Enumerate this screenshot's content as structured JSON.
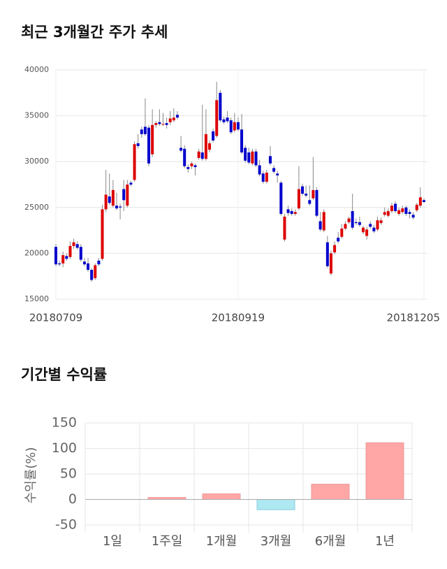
{
  "chart_data": [
    {
      "type": "candlestick",
      "title": "최근 3개월간 주가 추세",
      "categories": [
        "20180709",
        null,
        null,
        null,
        null,
        null,
        null,
        null,
        null,
        null,
        null,
        null,
        null,
        null,
        null,
        null,
        null,
        null,
        null,
        null,
        null,
        null,
        null,
        null,
        null,
        null,
        null,
        null,
        null,
        null,
        null,
        null,
        null,
        null,
        null,
        null,
        null,
        null,
        null,
        null,
        null,
        null,
        null,
        null,
        null,
        null,
        null,
        null,
        null,
        null,
        null,
        "20180919",
        null,
        null,
        null,
        null,
        null,
        null,
        null,
        null,
        null,
        null,
        null,
        null,
        null,
        null,
        null,
        null,
        null,
        null,
        null,
        null,
        null,
        null,
        null,
        null,
        null,
        null,
        null,
        null,
        null,
        null,
        null,
        null,
        null,
        null,
        null,
        null,
        null,
        null,
        null,
        null,
        null,
        null,
        null,
        null,
        null,
        null,
        null,
        null,
        null,
        null,
        null,
        "20181205"
      ],
      "open": [
        20700,
        18900,
        18900,
        19700,
        19600,
        20800,
        21000,
        20700,
        19100,
        18900,
        18200,
        17300,
        19200,
        19400,
        24800,
        26200,
        25200,
        25200,
        25100,
        27000,
        25200,
        27700,
        28000,
        32000,
        33500,
        33800,
        33700,
        30800,
        34000,
        34300,
        34100,
        34200,
        34300,
        34500,
        35100,
        31500,
        31400,
        29400,
        29500,
        29600,
        30400,
        31000,
        30300,
        31300,
        33300,
        32800,
        37500,
        34600,
        34800,
        34500,
        33400,
        34300,
        33500,
        31500,
        31000,
        29800,
        31100,
        29600,
        28700,
        27800,
        30600,
        29300,
        28700,
        27700,
        21500,
        24800,
        24600,
        24300,
        24900,
        27300,
        26500,
        25800,
        26000,
        26900,
        23500,
        22500,
        21200,
        17800,
        20100,
        21700,
        21800,
        22700,
        23400,
        24600,
        23400,
        23400,
        22300,
        21900,
        23200,
        22800,
        22600,
        23300,
        24200,
        24100,
        24600,
        25400,
        24300,
        24500,
        25000,
        24500,
        24200,
        24700,
        25200,
        25800
      ],
      "high": [
        21000,
        19200,
        20200,
        20000,
        21300,
        21600,
        21300,
        21000,
        19500,
        19500,
        18400,
        18900,
        19500,
        25300,
        29100,
        28700,
        28000,
        26600,
        25400,
        28000,
        28000,
        27900,
        32200,
        33000,
        33800,
        36900,
        34000,
        35700,
        34400,
        35700,
        35300,
        34800,
        35500,
        35800,
        35500,
        32800,
        31800,
        29700,
        30000,
        29800,
        31400,
        36200,
        35700,
        32300,
        33600,
        38700,
        37800,
        34900,
        35500,
        34800,
        35300,
        34800,
        35200,
        31800,
        31500,
        31400,
        31400,
        30200,
        29000,
        29100,
        31700,
        29600,
        29000,
        27900,
        24300,
        25200,
        24900,
        24800,
        29500,
        27600,
        27400,
        27400,
        30500,
        27200,
        24500,
        24800,
        21900,
        20300,
        21300,
        22300,
        23200,
        23500,
        24000,
        26500,
        23800,
        24000,
        23000,
        22900,
        23500,
        23100,
        24000,
        23900,
        25000,
        24900,
        25500,
        25700,
        25000,
        25200,
        25200,
        24800,
        24500,
        25500,
        27200,
        26000
      ],
      "low": [
        18600,
        18600,
        18500,
        19200,
        19400,
        20500,
        20400,
        19100,
        18600,
        18000,
        16900,
        17100,
        18600,
        19200,
        24500,
        25300,
        25000,
        24700,
        23700,
        24600,
        25000,
        27300,
        27800,
        31400,
        32600,
        32800,
        29500,
        30500,
        33700,
        33900,
        33900,
        33600,
        34000,
        34300,
        34600,
        31000,
        29300,
        28800,
        29200,
        28500,
        30200,
        30100,
        30100,
        31000,
        32100,
        32600,
        34300,
        34100,
        34200,
        33000,
        33200,
        33300,
        30800,
        29900,
        29700,
        29600,
        29400,
        28400,
        27600,
        27600,
        29600,
        28700,
        27700,
        24100,
        21300,
        24100,
        24100,
        24100,
        24700,
        26300,
        26100,
        25200,
        25800,
        23900,
        22400,
        22300,
        18400,
        17600,
        19900,
        21100,
        21600,
        22500,
        23200,
        22600,
        23100,
        22900,
        22100,
        21500,
        22700,
        22200,
        22400,
        23100,
        24000,
        23900,
        24400,
        24400,
        24100,
        24300,
        24100,
        23800,
        23700,
        24500,
        25000,
        25500
      ],
      "close": [
        18800,
        18800,
        19800,
        19400,
        20800,
        21200,
        20600,
        19300,
        18800,
        18200,
        17100,
        18700,
        18800,
        24800,
        26400,
        25500,
        26900,
        24900,
        25000,
        25800,
        27500,
        27500,
        31900,
        31700,
        33000,
        33000,
        29800,
        34000,
        34200,
        34100,
        34100,
        34000,
        34700,
        34800,
        34800,
        31200,
        29500,
        29200,
        29800,
        29400,
        31100,
        30300,
        33000,
        32000,
        32300,
        36700,
        34500,
        34300,
        34400,
        33200,
        34300,
        33500,
        31000,
        30100,
        29900,
        31100,
        29600,
        28600,
        27800,
        28800,
        29800,
        28900,
        28500,
        24300,
        24000,
        24400,
        24300,
        24500,
        27000,
        26500,
        26300,
        25400,
        26900,
        24100,
        22600,
        24500,
        18600,
        20000,
        20900,
        21300,
        22700,
        23200,
        23800,
        22800,
        23300,
        23100,
        22800,
        22600,
        22900,
        22400,
        23600,
        23600,
        24500,
        24600,
        25200,
        24600,
        24700,
        24900,
        24300,
        24300,
        23900,
        25300,
        26100,
        25600
      ],
      "up_color": "#dd0000",
      "down_color": "#0000cc",
      "ylim": [
        15000,
        40000
      ],
      "yticks": [
        15000,
        20000,
        25000,
        30000,
        35000,
        40000
      ],
      "grid": true
    },
    {
      "type": "bar",
      "title": "기간별 수익률",
      "ylabel": "수익률(%)",
      "categories": [
        "1일",
        "1주일",
        "1개월",
        "3개월",
        "6개월",
        "1년"
      ],
      "values": [
        0,
        4,
        11,
        -20,
        30,
        111
      ],
      "positive_color": "#ffa6a6",
      "negative_color": "#aee8f2",
      "ylim": [
        -65,
        150
      ],
      "yticks": [
        -50,
        0,
        50,
        100,
        150
      ],
      "grid": true
    }
  ]
}
